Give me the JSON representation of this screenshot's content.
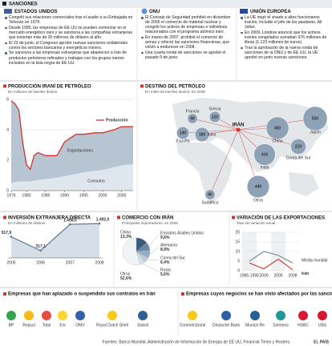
{
  "header": {
    "title": "SANCIONES"
  },
  "sanctions": [
    {
      "title": "ESTADOS UNIDOS",
      "items": [
        "Congeló sus relaciones comerciales tras el asalto a su Embajada en Teherán en 1979.",
        "Desde 1995, las empresas de EE UU no pueden comerciar en el mercado energético iraní y se sanciona a las compañías extranjeras que inviertan más de 20 millones de dólares al año.",
        "El 23 de junio, el Congreso aprobó nuevas sanciones unilaterales contra los sectores bancarios y energéticos iraníes.",
        "Se sanciona a las empresas extranjeras que abastecen a Irán de productos petroleros refinados y trabajan con los grupos iraníes incluidos en la lista negra de EE UU."
      ]
    },
    {
      "title": "ONU",
      "items": [
        "El Consejo de Seguridad prohibió en diciembre de 2006 el comercio de material nuclear y congeló los activos de empresas e individuos relacionados con el programa atómico iraní.",
        "En marzo de 2007, prohibió el comercio de armas y reforzó las sanciones financieras, que volvió a endurecer en 2008.",
        "Una cuarta ronda de sanciones se aprobó el pasado 9 de junio."
      ]
    },
    {
      "title": "UNIÓN EUROPEA",
      "items": [
        "La UE negó el visado a altos funcionarios iraníes, incluido el jefe de los pasdaran, Alí Jafari.",
        "En 2009, Londres anunció que los activos iraníes congelados sumaban 976 millones de libras (1.123 millones de euros).",
        "Tras la aprobación de la nueva ronda de sanciones de la ONU y de EE UU, la UE aprobó en junio nuevas sanciones."
      ]
    }
  ],
  "chart_data": [
    {
      "type": "area",
      "title": "PRODUCCIÓN IRANÍ DE PETRÓLEO",
      "subtitle": "En millones de barriles diarios",
      "x": [
        1976,
        1977,
        1978,
        1979,
        1980,
        1981,
        1982,
        1983,
        1985,
        1988,
        1990,
        1993,
        1995,
        1998,
        2000,
        2003,
        2005,
        2008
      ],
      "series": [
        {
          "name": "Producción",
          "color": "#d0342c",
          "values": [
            5.9,
            5.7,
            5.3,
            3.2,
            1.7,
            1.4,
            2.3,
            2.5,
            2.3,
            2.3,
            3.2,
            3.7,
            3.7,
            3.8,
            3.8,
            4.0,
            4.2,
            4.2
          ]
        },
        {
          "name": "Exportaciones",
          "color": "#b7c5d3",
          "values": [
            5.4,
            5.15,
            4.7,
            2.6,
            1.1,
            0.8,
            1.65,
            1.8,
            1.55,
            1.45,
            2.25,
            2.6,
            2.5,
            2.5,
            2.45,
            2.45,
            2.55,
            2.45
          ]
        },
        {
          "name": "Consumo",
          "color": "#dfe6ed",
          "values": [
            0.5,
            0.55,
            0.6,
            0.6,
            0.6,
            0.6,
            0.65,
            0.7,
            0.75,
            0.85,
            0.95,
            1.1,
            1.2,
            1.3,
            1.35,
            1.55,
            1.65,
            1.75
          ]
        }
      ],
      "xlim": [
        1976,
        2008
      ],
      "xticks": [
        1976,
        1980,
        1985,
        1990,
        1995,
        2000,
        2005
      ],
      "ylim": [
        0,
        6
      ],
      "yticks": [
        0,
        2,
        4,
        6
      ],
      "grid": true
    },
    {
      "type": "bubble",
      "title": "DESTINO DEL PETRÓLEO",
      "subtitle": "En miles de barriles diarios. En 2008",
      "origin": "IRÁN",
      "categories": [
        "Francia",
        "Grecia",
        "Italia",
        "España",
        "China",
        "Japón",
        "India",
        "Corea del Sur",
        "Otros",
        "Sudáfrica"
      ],
      "values": [
        90,
        110,
        180,
        140,
        450,
        520,
        410,
        210,
        440,
        90
      ],
      "color": "#8da2b6"
    },
    {
      "type": "line",
      "title": "INVERSIÓN EXTRANJERA DIRECTA",
      "subtitle": "En millones de dólares",
      "categories": [
        "2005",
        "2006",
        "2007",
        "2008"
      ],
      "values": [
        917.9,
        317.1,
        1458.0,
        1492.0
      ],
      "value_labels": [
        "917,9",
        "317,1",
        "1.458,0",
        "1.492,0"
      ],
      "color": "#5b7896",
      "ylim": [
        0,
        1600
      ]
    },
    {
      "type": "pie",
      "title": "COMERCIO CON IRÁN",
      "subtitle": "Principales importadores, en 2008",
      "categories": [
        "China",
        "Emiratos Árabes Unidos",
        "Alemania",
        "Corea del Sur",
        "Rusia",
        "Otros"
      ],
      "values": [
        13.3,
        9.6,
        8.9,
        6.4,
        5.6,
        52.6
      ],
      "value_labels": [
        "13,3%",
        "9,6%",
        "8,9%",
        "6,4%",
        "5,6%",
        "52,6%"
      ],
      "colors": [
        "#3b5b7b",
        "#6a88a5",
        "#98aec3",
        "#bfcddb",
        "#d9e2ea",
        "#f1f4f7"
      ]
    },
    {
      "type": "line",
      "title": "VARIACIÓN DE LAS EXPORTACIONES",
      "subtitle": "Tasa de variación anual",
      "categories": [
        "1985-1995",
        "2000",
        "2005",
        "2008"
      ],
      "series": [
        {
          "name": "Media mundial",
          "color": "#7a8894",
          "values": [
            5,
            10,
            8,
            4
          ]
        },
        {
          "name": "Irán",
          "color": "#d0342c",
          "values": [
            4,
            1,
            6,
            0.5
          ]
        }
      ],
      "ylim": [
        0,
        20
      ],
      "yticks": [
        0,
        5,
        10,
        15,
        20
      ]
    }
  ],
  "companies": [
    {
      "title": "Empresas que han aplazado o suspendido sus contratos en Irán",
      "names": [
        "BP",
        "Repsol",
        "Total",
        "Eni",
        "OMV",
        "Royal Dutch Shell",
        "Statoil"
      ]
    },
    {
      "title": "Empresas cuyos negocios se han visto afectados por las sanciones de EE UU",
      "names": [
        "Commerzbank",
        "Deutsche Bank",
        "Munich Re",
        "Siemens",
        "HSBC",
        "UBS"
      ]
    }
  ],
  "footer": {
    "source": "Fuentes: Banco Mundial, Administración de Información de Energía de EE UU, Financial Times y Reuters.",
    "brand": "EL PAÍS"
  }
}
